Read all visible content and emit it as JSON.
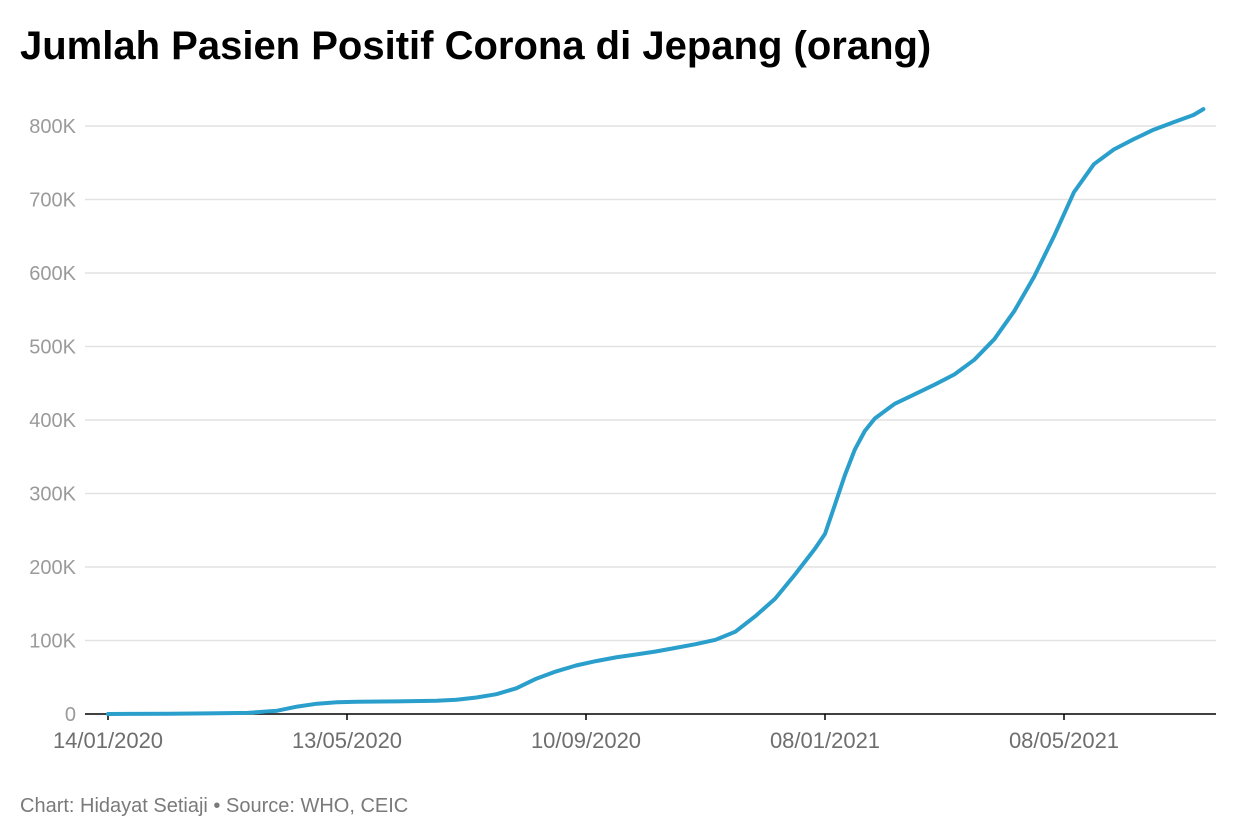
{
  "chart_data": {
    "type": "line",
    "title": "Jumlah Pasien Positif Corona di Jepang (orang)",
    "xlabel": "",
    "ylabel": "",
    "x_ticks": [
      "14/01/2020",
      "13/05/2020",
      "10/09/2020",
      "08/01/2021",
      "08/05/2021"
    ],
    "y_ticks": [
      "0",
      "100K",
      "200K",
      "300K",
      "400K",
      "500K",
      "600K",
      "700K",
      "800K"
    ],
    "ylim": [
      0,
      800000
    ],
    "grid": true,
    "line_color": "#2a9fcc",
    "series": [
      {
        "x": [
          "2020-01-14",
          "2020-02-13",
          "2020-03-04",
          "2020-03-24",
          "2020-04-08",
          "2020-04-18",
          "2020-04-28",
          "2020-05-08",
          "2020-05-18",
          "2020-06-07",
          "2020-06-27",
          "2020-07-07",
          "2020-07-17",
          "2020-07-27",
          "2020-08-06",
          "2020-08-16",
          "2020-08-26",
          "2020-09-05",
          "2020-09-15",
          "2020-09-25",
          "2020-10-05",
          "2020-10-15",
          "2020-10-25",
          "2020-11-04",
          "2020-11-14",
          "2020-11-24",
          "2020-12-04",
          "2020-12-14",
          "2020-12-24",
          "2021-01-03",
          "2021-01-08",
          "2021-01-13",
          "2021-01-18",
          "2021-01-23",
          "2021-01-28",
          "2021-02-02",
          "2021-02-12",
          "2021-02-22",
          "2021-03-04",
          "2021-03-14",
          "2021-03-24",
          "2021-04-03",
          "2021-04-13",
          "2021-04-23",
          "2021-05-03",
          "2021-05-13",
          "2021-05-23",
          "2021-06-02",
          "2021-06-12",
          "2021-06-22",
          "2021-07-02",
          "2021-07-12",
          "2021-07-17"
        ],
        "values": [
          0,
          300,
          800,
          1500,
          4500,
          10000,
          14000,
          16000,
          16700,
          17200,
          18000,
          19500,
          22500,
          27000,
          35000,
          48000,
          58000,
          66000,
          72000,
          77000,
          81000,
          85000,
          90000,
          95000,
          101000,
          112000,
          133000,
          157000,
          190000,
          225000,
          245000,
          285000,
          325000,
          360000,
          385000,
          402000,
          422000,
          435000,
          448000,
          462000,
          482000,
          510000,
          548000,
          595000,
          650000,
          710000,
          748000,
          768000,
          782000,
          795000,
          805000,
          815000,
          823000
        ]
      }
    ]
  },
  "footer": "Chart: Hidayat Setiaji • Source: WHO, CEIC"
}
